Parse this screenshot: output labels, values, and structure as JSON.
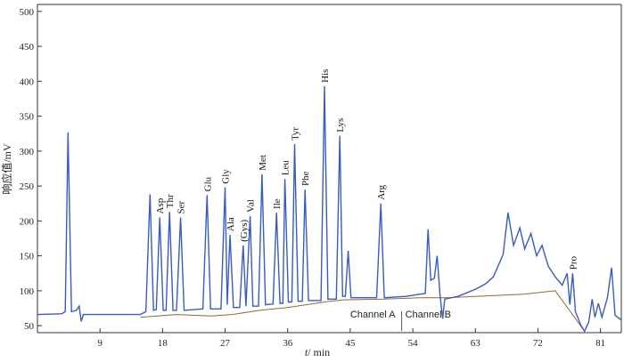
{
  "chart_data": {
    "type": "line",
    "xlabel_italic": "t",
    "xlabel_rest": "/ min",
    "ylabel": "响应值/mV",
    "xlim": [
      0,
      84
    ],
    "ylim": [
      40,
      510
    ],
    "xticks": [
      9,
      18,
      27,
      36,
      45,
      54,
      63,
      72,
      81
    ],
    "yticks": [
      50,
      100,
      150,
      200,
      250,
      300,
      350,
      400,
      450,
      500
    ],
    "grid": false,
    "colors": {
      "signal": "#3a5bbf",
      "baseline": "#8a6a3a",
      "axis": "#333333"
    },
    "channel_marker": {
      "x": 52.4,
      "labels": [
        "Channel A",
        "Channel B"
      ]
    },
    "peaks": [
      {
        "label": "Asp",
        "x": 17.6,
        "height": 205
      },
      {
        "label": "Thr",
        "x": 19.0,
        "height": 213
      },
      {
        "label": "Ser",
        "x": 20.6,
        "height": 205
      },
      {
        "label": "Glu",
        "x": 24.4,
        "height": 237
      },
      {
        "label": "Gly",
        "x": 27.0,
        "height": 248
      },
      {
        "label": "Ala",
        "x": 27.7,
        "height": 180
      },
      {
        "label": "(Gys)",
        "x": 29.6,
        "height": 165
      },
      {
        "label": "Val",
        "x": 30.6,
        "height": 207
      },
      {
        "label": "Met",
        "x": 32.3,
        "height": 267
      },
      {
        "label": "Ile",
        "x": 34.4,
        "height": 212
      },
      {
        "label": "Leu",
        "x": 35.6,
        "height": 260
      },
      {
        "label": "Tyr",
        "x": 37.0,
        "height": 310
      },
      {
        "label": "Phe",
        "x": 38.5,
        "height": 245
      },
      {
        "label": "His",
        "x": 41.3,
        "height": 393
      },
      {
        "label": "Lys",
        "x": 43.5,
        "height": 322
      },
      {
        "label": "Arg",
        "x": 49.4,
        "height": 225
      },
      {
        "label": "Pro",
        "x": 77.0,
        "height": 125
      }
    ],
    "unlabeled_peaks": [
      {
        "x": 4.4,
        "height": 327
      },
      {
        "x": 16.2,
        "height": 238
      },
      {
        "x": 44.7,
        "height": 157
      },
      {
        "x": 56.2,
        "height": 188
      },
      {
        "x": 67.7,
        "height": 212
      },
      {
        "x": 69.4,
        "height": 190
      },
      {
        "x": 71.0,
        "height": 182
      },
      {
        "x": 72.6,
        "height": 165
      },
      {
        "x": 76.2,
        "height": 125
      },
      {
        "x": 82.6,
        "height": 133
      }
    ],
    "trace": [
      [
        0,
        66
      ],
      [
        3.5,
        67
      ],
      [
        4.0,
        70
      ],
      [
        4.4,
        327
      ],
      [
        4.9,
        70
      ],
      [
        5.6,
        72
      ],
      [
        6.0,
        78
      ],
      [
        6.3,
        56
      ],
      [
        6.6,
        66
      ],
      [
        9,
        66
      ],
      [
        14.8,
        66
      ],
      [
        15.6,
        70
      ],
      [
        16.2,
        238
      ],
      [
        16.7,
        72
      ],
      [
        17.1,
        73
      ],
      [
        17.6,
        205
      ],
      [
        18.1,
        72
      ],
      [
        18.5,
        72
      ],
      [
        19.0,
        213
      ],
      [
        19.5,
        72
      ],
      [
        20.0,
        72
      ],
      [
        20.6,
        205
      ],
      [
        21.1,
        72
      ],
      [
        23.8,
        74
      ],
      [
        24.4,
        237
      ],
      [
        24.9,
        74
      ],
      [
        26.4,
        74
      ],
      [
        27.0,
        248
      ],
      [
        27.3,
        80
      ],
      [
        27.7,
        180
      ],
      [
        28.2,
        76
      ],
      [
        29.1,
        76
      ],
      [
        29.6,
        165
      ],
      [
        30.0,
        78
      ],
      [
        30.6,
        207
      ],
      [
        31.0,
        78
      ],
      [
        31.8,
        78
      ],
      [
        32.3,
        267
      ],
      [
        32.8,
        80
      ],
      [
        33.9,
        81
      ],
      [
        34.4,
        212
      ],
      [
        34.9,
        82
      ],
      [
        35.3,
        82
      ],
      [
        35.6,
        260
      ],
      [
        36.1,
        84
      ],
      [
        36.6,
        84
      ],
      [
        37.0,
        310
      ],
      [
        37.5,
        85
      ],
      [
        38.1,
        85
      ],
      [
        38.5,
        245
      ],
      [
        39.0,
        86
      ],
      [
        40.8,
        86
      ],
      [
        41.3,
        393
      ],
      [
        41.8,
        88
      ],
      [
        43.0,
        88
      ],
      [
        43.5,
        322
      ],
      [
        43.9,
        92
      ],
      [
        44.3,
        92
      ],
      [
        44.7,
        157
      ],
      [
        45.1,
        90
      ],
      [
        48.8,
        90
      ],
      [
        49.4,
        225
      ],
      [
        49.9,
        90
      ],
      [
        53.0,
        92
      ],
      [
        55.0,
        95
      ],
      [
        55.8,
        96
      ],
      [
        56.2,
        188
      ],
      [
        56.6,
        115
      ],
      [
        57.1,
        118
      ],
      [
        57.5,
        150
      ],
      [
        57.9,
        95
      ],
      [
        58.3,
        60
      ],
      [
        58.6,
        88
      ],
      [
        60.5,
        92
      ],
      [
        63.0,
        102
      ],
      [
        64.5,
        110
      ],
      [
        65.6,
        120
      ],
      [
        67.0,
        152
      ],
      [
        67.7,
        212
      ],
      [
        68.5,
        165
      ],
      [
        69.4,
        190
      ],
      [
        70.1,
        160
      ],
      [
        71.0,
        182
      ],
      [
        71.8,
        150
      ],
      [
        72.6,
        165
      ],
      [
        73.5,
        135
      ],
      [
        74.5,
        120
      ],
      [
        75.5,
        108
      ],
      [
        76.2,
        125
      ],
      [
        76.6,
        80
      ],
      [
        77.0,
        125
      ],
      [
        77.4,
        70
      ],
      [
        78.2,
        50
      ],
      [
        78.7,
        42
      ],
      [
        79.3,
        55
      ],
      [
        79.8,
        88
      ],
      [
        80.2,
        62
      ],
      [
        80.7,
        82
      ],
      [
        81.2,
        62
      ],
      [
        82.0,
        90
      ],
      [
        82.6,
        133
      ],
      [
        83.1,
        65
      ],
      [
        84,
        58
      ]
    ],
    "baseline": [
      [
        14.8,
        62
      ],
      [
        20,
        66
      ],
      [
        25,
        64
      ],
      [
        28,
        66
      ],
      [
        32,
        72
      ],
      [
        36,
        76
      ],
      [
        41.3,
        84
      ],
      [
        44,
        87
      ],
      [
        50,
        88
      ],
      [
        55,
        90
      ],
      [
        59,
        90
      ],
      [
        63,
        92
      ],
      [
        70,
        95
      ],
      [
        74.5,
        100
      ],
      [
        78.7,
        42
      ]
    ]
  }
}
